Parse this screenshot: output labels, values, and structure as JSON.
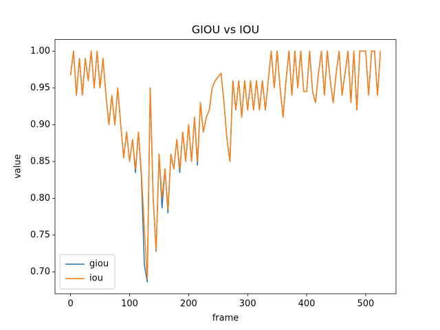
{
  "chart_data": {
    "type": "line",
    "title": "GIOU vs IOU",
    "xlabel": "frame",
    "ylabel": "value",
    "x": [
      0,
      5,
      10,
      15,
      20,
      25,
      30,
      35,
      40,
      45,
      50,
      55,
      60,
      65,
      70,
      75,
      80,
      85,
      90,
      95,
      100,
      105,
      110,
      115,
      120,
      125,
      130,
      135,
      140,
      145,
      150,
      155,
      160,
      165,
      170,
      175,
      180,
      185,
      190,
      195,
      200,
      205,
      210,
      215,
      220,
      225,
      230,
      235,
      240,
      245,
      250,
      255,
      260,
      265,
      270,
      275,
      280,
      285,
      290,
      295,
      300,
      305,
      310,
      315,
      320,
      325,
      330,
      335,
      340,
      345,
      350,
      355,
      360,
      365,
      370,
      375,
      380,
      385,
      390,
      395,
      400,
      405,
      410,
      415,
      420,
      425,
      430,
      435,
      440,
      445,
      450,
      455,
      460,
      465,
      470,
      475,
      480,
      485,
      490,
      495,
      500,
      505,
      510,
      515,
      520,
      525
    ],
    "series": [
      {
        "name": "giou",
        "color": "#1f77b4",
        "values": [
          0.967,
          1.0,
          0.94,
          0.99,
          0.94,
          0.99,
          0.96,
          1.0,
          0.95,
          1.0,
          0.95,
          0.99,
          0.94,
          0.9,
          0.94,
          0.9,
          0.95,
          0.9,
          0.855,
          0.89,
          0.85,
          0.88,
          0.835,
          0.89,
          0.83,
          0.71,
          0.686,
          0.95,
          0.8,
          0.728,
          0.86,
          0.787,
          0.84,
          0.78,
          0.86,
          0.84,
          0.88,
          0.835,
          0.89,
          0.85,
          0.9,
          0.85,
          0.91,
          0.845,
          0.93,
          0.89,
          0.91,
          0.92,
          0.95,
          0.96,
          0.965,
          0.97,
          0.93,
          0.88,
          0.85,
          0.96,
          0.92,
          0.96,
          0.91,
          0.96,
          0.92,
          0.96,
          0.92,
          0.96,
          0.92,
          0.96,
          0.92,
          0.96,
          1.0,
          0.95,
          1.0,
          0.95,
          0.91,
          0.96,
          1.0,
          0.94,
          1.0,
          0.95,
          1.0,
          0.945,
          0.945,
          1.0,
          0.945,
          0.93,
          0.97,
          1.0,
          0.94,
          1.0,
          0.96,
          0.93,
          0.97,
          1.0,
          0.94,
          0.97,
          1.0,
          0.93,
          1.0,
          0.92,
          1.0,
          1.0,
          1.0,
          0.94,
          1.0,
          1.0,
          0.94,
          1.0
        ]
      },
      {
        "name": "iou",
        "color": "#ff7f0e",
        "values": [
          0.967,
          1.0,
          0.94,
          0.99,
          0.94,
          0.99,
          0.96,
          1.0,
          0.95,
          1.0,
          0.95,
          0.99,
          0.94,
          0.9,
          0.94,
          0.9,
          0.95,
          0.9,
          0.855,
          0.89,
          0.85,
          0.88,
          0.84,
          0.89,
          0.835,
          0.76,
          0.69,
          0.95,
          0.8,
          0.73,
          0.86,
          0.8,
          0.84,
          0.785,
          0.86,
          0.84,
          0.88,
          0.84,
          0.89,
          0.85,
          0.9,
          0.85,
          0.91,
          0.85,
          0.93,
          0.89,
          0.91,
          0.92,
          0.95,
          0.96,
          0.965,
          0.97,
          0.93,
          0.88,
          0.85,
          0.96,
          0.92,
          0.96,
          0.91,
          0.96,
          0.92,
          0.96,
          0.92,
          0.96,
          0.92,
          0.96,
          0.92,
          0.96,
          1.0,
          0.95,
          1.0,
          0.95,
          0.91,
          0.96,
          1.0,
          0.94,
          1.0,
          0.95,
          1.0,
          0.945,
          0.945,
          1.0,
          0.945,
          0.93,
          0.97,
          1.0,
          0.94,
          1.0,
          0.96,
          0.93,
          0.97,
          1.0,
          0.94,
          0.97,
          1.0,
          0.93,
          1.0,
          0.92,
          1.0,
          1.0,
          1.0,
          0.94,
          1.0,
          1.0,
          0.94,
          1.0
        ]
      }
    ],
    "xlim": [
      -26.35,
      551.35
    ],
    "ylim": [
      0.6703,
      1.0157
    ],
    "xticks": [
      0,
      100,
      200,
      300,
      400,
      500
    ],
    "yticks": [
      {
        "value": 0.7,
        "label": "0.70"
      },
      {
        "value": 0.75,
        "label": "0.75"
      },
      {
        "value": 0.8,
        "label": "0.80"
      },
      {
        "value": 0.85,
        "label": "0.85"
      },
      {
        "value": 0.9,
        "label": "0.90"
      },
      {
        "value": 0.95,
        "label": "0.95"
      },
      {
        "value": 1.0,
        "label": "1.00"
      }
    ],
    "legend": "lower left"
  }
}
